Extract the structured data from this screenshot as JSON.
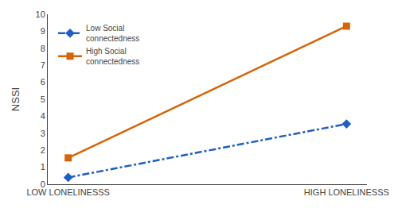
{
  "chart_data": {
    "type": "line",
    "categories": [
      "LOW LONELINESSS",
      "HIGH LONELINESSS"
    ],
    "series": [
      {
        "name": "Low Social\nconnectedness",
        "color": "#1f5fc4",
        "values": [
          0.4,
          3.55
        ],
        "marker": "diamond",
        "line_style": "dashdot"
      },
      {
        "name": "High Social\nconnectedness",
        "color": "#d4650a",
        "values": [
          1.55,
          9.3
        ],
        "marker": "square",
        "line_style": "solid"
      }
    ],
    "ylabel": "NSSI",
    "ylim": [
      0,
      10
    ],
    "yticks": [
      0,
      1,
      2,
      3,
      4,
      5,
      6,
      7,
      8,
      9,
      10
    ],
    "grid": false,
    "legend": "upper left"
  }
}
